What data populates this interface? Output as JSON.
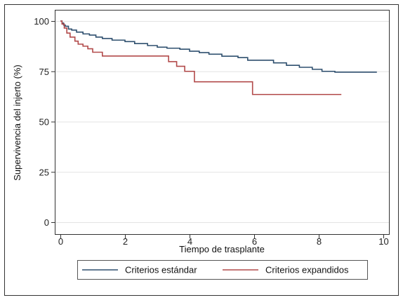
{
  "chart_data": {
    "type": "line",
    "title": "",
    "xlabel": "Tiempo de trasplante",
    "ylabel": "Supervivencia del injerto (%)",
    "xlim": [
      0,
      10
    ],
    "ylim": [
      0,
      100
    ],
    "x_ticks": [
      0,
      2,
      4,
      6,
      8,
      10
    ],
    "y_ticks": [
      0,
      25,
      50,
      75,
      100
    ],
    "grid": "horizontal",
    "legend_position": "bottom",
    "series": [
      {
        "name": "Criterios estándar",
        "color": "#2e4f6e",
        "step": true,
        "points": [
          [
            0,
            100
          ],
          [
            0.05,
            99
          ],
          [
            0.1,
            98
          ],
          [
            0.15,
            97.4
          ],
          [
            0.25,
            96
          ],
          [
            0.35,
            95.5
          ],
          [
            0.5,
            94.5
          ],
          [
            0.7,
            93.6
          ],
          [
            0.9,
            93
          ],
          [
            1.1,
            92
          ],
          [
            1.3,
            91.3
          ],
          [
            1.6,
            90.5
          ],
          [
            2.0,
            89.8
          ],
          [
            2.3,
            88.8
          ],
          [
            2.7,
            87.8
          ],
          [
            3.0,
            87
          ],
          [
            3.3,
            86.5
          ],
          [
            3.7,
            86
          ],
          [
            4.0,
            85
          ],
          [
            4.3,
            84.3
          ],
          [
            4.6,
            83.5
          ],
          [
            5.0,
            82.5
          ],
          [
            5.5,
            81.8
          ],
          [
            5.8,
            80.5
          ],
          [
            6.3,
            80.5
          ],
          [
            6.6,
            79.2
          ],
          [
            7.0,
            78
          ],
          [
            7.4,
            77
          ],
          [
            7.8,
            76
          ],
          [
            8.1,
            75
          ],
          [
            8.5,
            74.6
          ],
          [
            9.0,
            74.6
          ],
          [
            9.8,
            74.6
          ]
        ]
      },
      {
        "name": "Criterios expandidos",
        "color": "#b24a4a",
        "step": true,
        "points": [
          [
            0,
            100
          ],
          [
            0.05,
            98.5
          ],
          [
            0.12,
            96.5
          ],
          [
            0.2,
            94
          ],
          [
            0.3,
            92
          ],
          [
            0.45,
            90
          ],
          [
            0.55,
            88.5
          ],
          [
            0.7,
            87.5
          ],
          [
            0.85,
            86.2
          ],
          [
            1.0,
            84.5
          ],
          [
            1.3,
            82.6
          ],
          [
            3.3,
            82.6
          ],
          [
            3.35,
            79.8
          ],
          [
            3.6,
            77.5
          ],
          [
            3.85,
            75
          ],
          [
            4.15,
            69.8
          ],
          [
            5.95,
            69.8
          ],
          [
            5.95,
            63.5
          ],
          [
            8.7,
            63.5
          ]
        ]
      }
    ]
  }
}
